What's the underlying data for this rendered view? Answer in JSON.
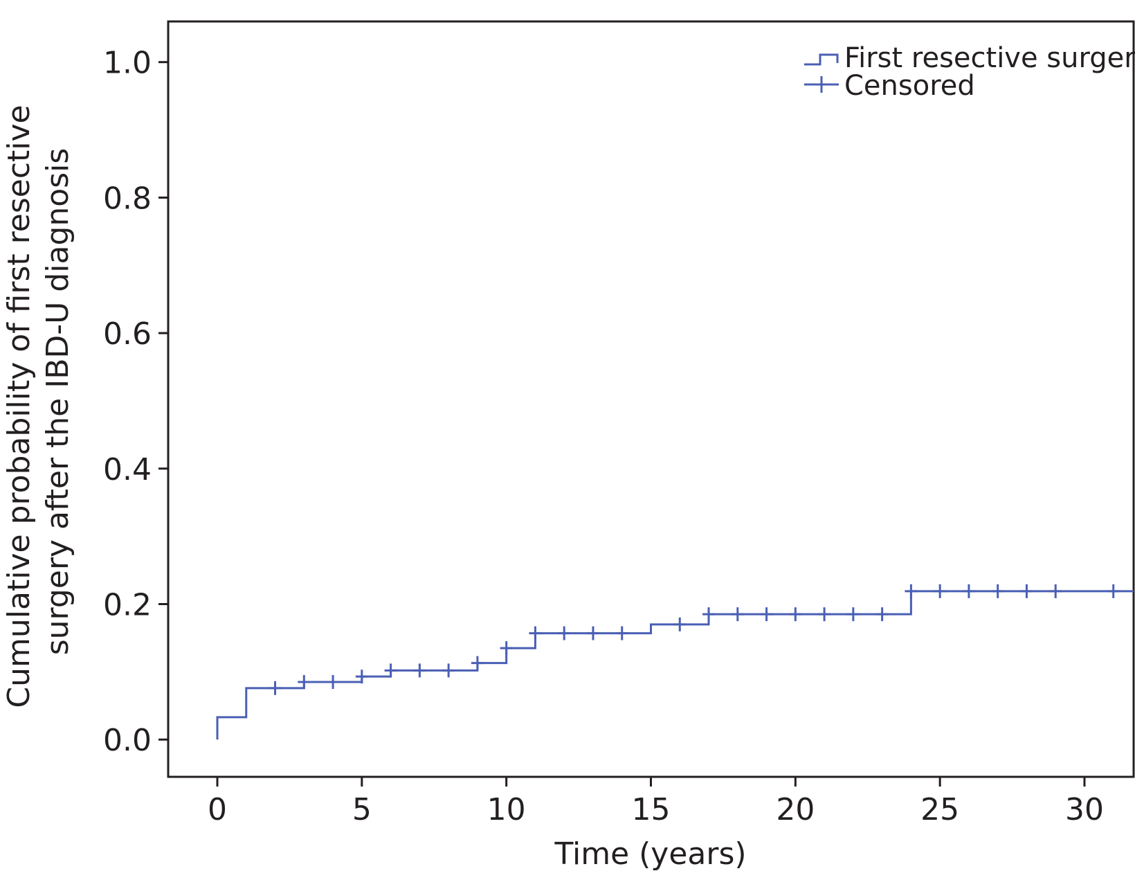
{
  "chart_data": {
    "type": "line",
    "xlabel": "Time (years)",
    "ylabel_lines": [
      "Cumulative probability of first resective",
      "surgery after the IBD-U diagnosis"
    ],
    "xlim": [
      -1.7,
      31.7
    ],
    "ylim": [
      -0.055,
      1.06
    ],
    "xticks": [
      0,
      5,
      10,
      15,
      20,
      25,
      30
    ],
    "yticks": [
      0.0,
      0.2,
      0.4,
      0.6,
      0.8,
      1.0
    ],
    "ytick_labels": [
      "0.0",
      "0.2",
      "0.4",
      "0.6",
      "0.8",
      "1.0"
    ],
    "grid": false,
    "legend": {
      "position": "top-right",
      "entries": [
        {
          "label": "First resective surgery",
          "kind": "step"
        },
        {
          "label": "Censored",
          "kind": "censor"
        }
      ]
    },
    "series": [
      {
        "name": "First resective surgery",
        "color": "#4a5fb4",
        "step_x": [
          0,
          0,
          1,
          3,
          5,
          6,
          9,
          10,
          11,
          15,
          17,
          24,
          31.7
        ],
        "step_y": [
          0.0,
          0.033,
          0.076,
          0.085,
          0.093,
          0.102,
          0.113,
          0.135,
          0.157,
          0.17,
          0.185,
          0.219,
          0.219
        ],
        "censored": [
          {
            "x": 2,
            "y": 0.076
          },
          {
            "x": 3,
            "y": 0.085
          },
          {
            "x": 4,
            "y": 0.085
          },
          {
            "x": 5,
            "y": 0.093
          },
          {
            "x": 6,
            "y": 0.102
          },
          {
            "x": 7,
            "y": 0.102
          },
          {
            "x": 8,
            "y": 0.102
          },
          {
            "x": 9,
            "y": 0.113
          },
          {
            "x": 10,
            "y": 0.135
          },
          {
            "x": 11,
            "y": 0.157
          },
          {
            "x": 12,
            "y": 0.157
          },
          {
            "x": 13,
            "y": 0.157
          },
          {
            "x": 14,
            "y": 0.157
          },
          {
            "x": 16,
            "y": 0.17
          },
          {
            "x": 17,
            "y": 0.185
          },
          {
            "x": 18,
            "y": 0.185
          },
          {
            "x": 19,
            "y": 0.185
          },
          {
            "x": 20,
            "y": 0.185
          },
          {
            "x": 21,
            "y": 0.185
          },
          {
            "x": 22,
            "y": 0.185
          },
          {
            "x": 23,
            "y": 0.185
          },
          {
            "x": 24,
            "y": 0.219
          },
          {
            "x": 25,
            "y": 0.219
          },
          {
            "x": 26,
            "y": 0.219
          },
          {
            "x": 27,
            "y": 0.219
          },
          {
            "x": 28,
            "y": 0.219
          },
          {
            "x": 29,
            "y": 0.219
          },
          {
            "x": 31,
            "y": 0.219
          }
        ]
      }
    ]
  }
}
